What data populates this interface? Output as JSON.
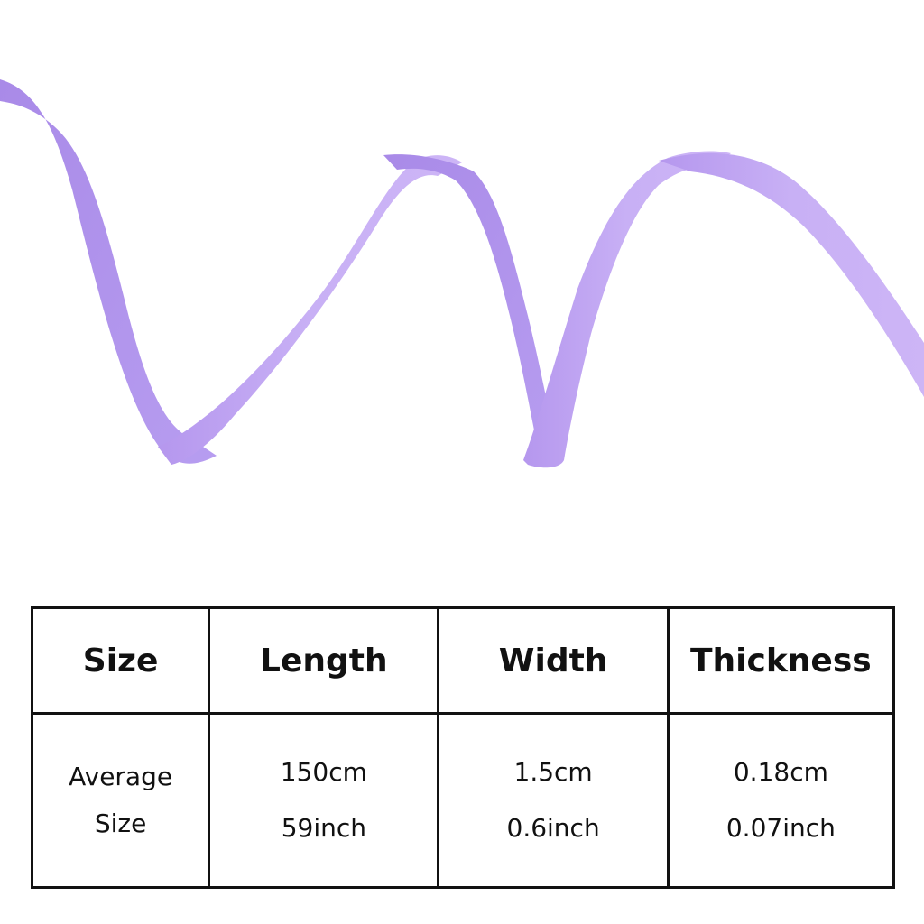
{
  "image": {
    "subject": "ribbon-band",
    "ribbon_color": "#c4a8f4",
    "ribbon_shadow_color": "#a98ae8",
    "background_color": "#ffffff",
    "table_border_color": "#111111"
  },
  "table": {
    "headers": [
      "Size",
      "Length",
      "Width",
      "Thickness"
    ],
    "rows": [
      {
        "label": [
          "Average",
          "Size"
        ],
        "length": [
          "150cm",
          "59inch"
        ],
        "width": [
          "1.5cm",
          "0.6inch"
        ],
        "thickness": [
          "0.18cm",
          "0.07inch"
        ]
      }
    ]
  }
}
